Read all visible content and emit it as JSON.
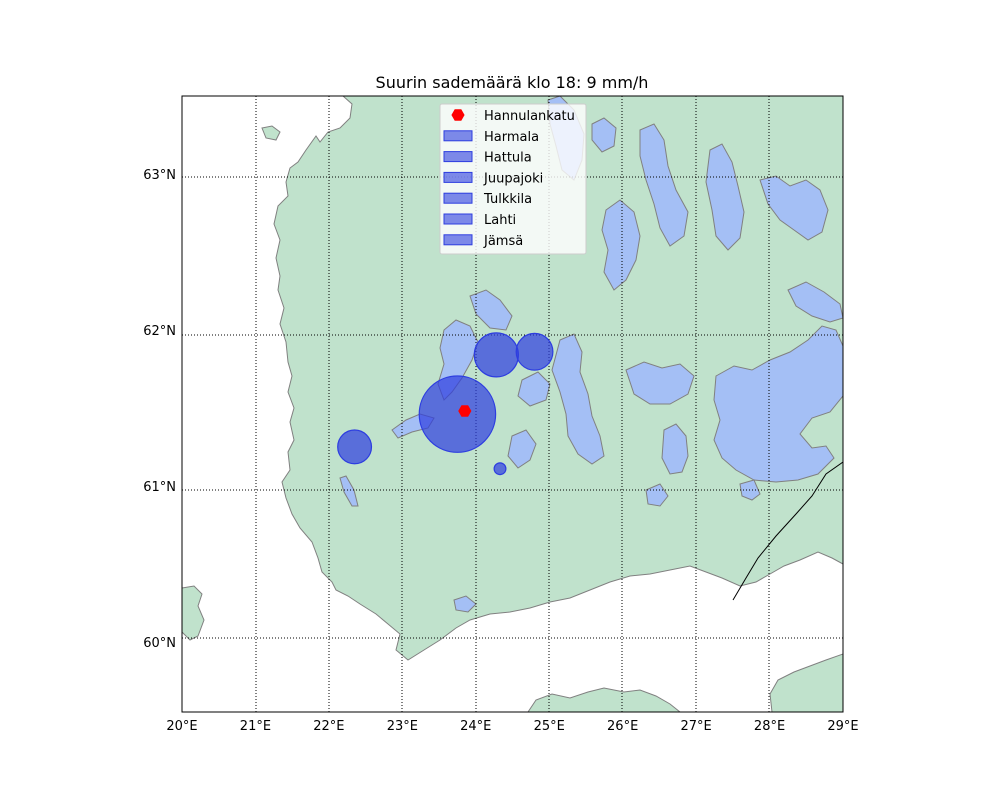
{
  "title": "Suurin sademäärä klo 18: 9 mm/h",
  "colors": {
    "land": "#c0e2cc",
    "water": "#a4bff5",
    "coast": "#808080",
    "station_fill": "#2d3de0",
    "marker": "#ff0000",
    "border": "#000000"
  },
  "map": {
    "lon_range": [
      20,
      29
    ],
    "lat_range": [
      59.55,
      63.5
    ],
    "lon_ticks": [
      "20°E",
      "21°E",
      "22°E",
      "23°E",
      "24°E",
      "25°E",
      "26°E",
      "27°E",
      "28°E",
      "29°E"
    ],
    "lat_ticks": [
      "60°N",
      "61°N",
      "62°N",
      "63°N"
    ],
    "grid": true,
    "grid_style": "dotted"
  },
  "legend": {
    "placement": "top-center",
    "entries": [
      {
        "label": "Hannulankatu",
        "kind": "marker",
        "icon": "red-hexagon-marker"
      },
      {
        "label": "Harmala",
        "kind": "patch",
        "icon": "blue-patch"
      },
      {
        "label": "Hattula",
        "kind": "patch",
        "icon": "blue-patch"
      },
      {
        "label": "Juupajoki",
        "kind": "patch",
        "icon": "blue-patch"
      },
      {
        "label": "Tulkkila",
        "kind": "patch",
        "icon": "blue-patch"
      },
      {
        "label": "Lahti",
        "kind": "patch",
        "icon": "blue-patch"
      },
      {
        "label": "Jämsä",
        "kind": "patch",
        "icon": "blue-patch"
      }
    ]
  },
  "chart_data": {
    "type": "scatter",
    "title": "Suurin sademäärä klo 18: 9 mm/h",
    "xlabel": "",
    "ylabel": "",
    "xlim": [
      20,
      29
    ],
    "ylim": [
      59.55,
      63.5
    ],
    "grid": true,
    "legend_placement": "top-center",
    "marker": {
      "name": "Hannulankatu",
      "lon": 23.85,
      "lat": 61.48
    },
    "circles": [
      {
        "lon": 23.75,
        "lat": 61.46,
        "radius_deg": 0.52
      },
      {
        "lon": 24.28,
        "lat": 61.84,
        "radius_deg": 0.3
      },
      {
        "lon": 24.8,
        "lat": 61.86,
        "radius_deg": 0.25
      },
      {
        "lon": 22.35,
        "lat": 61.25,
        "radius_deg": 0.23
      },
      {
        "lon": 24.33,
        "lat": 61.11,
        "radius_deg": 0.08
      }
    ]
  }
}
